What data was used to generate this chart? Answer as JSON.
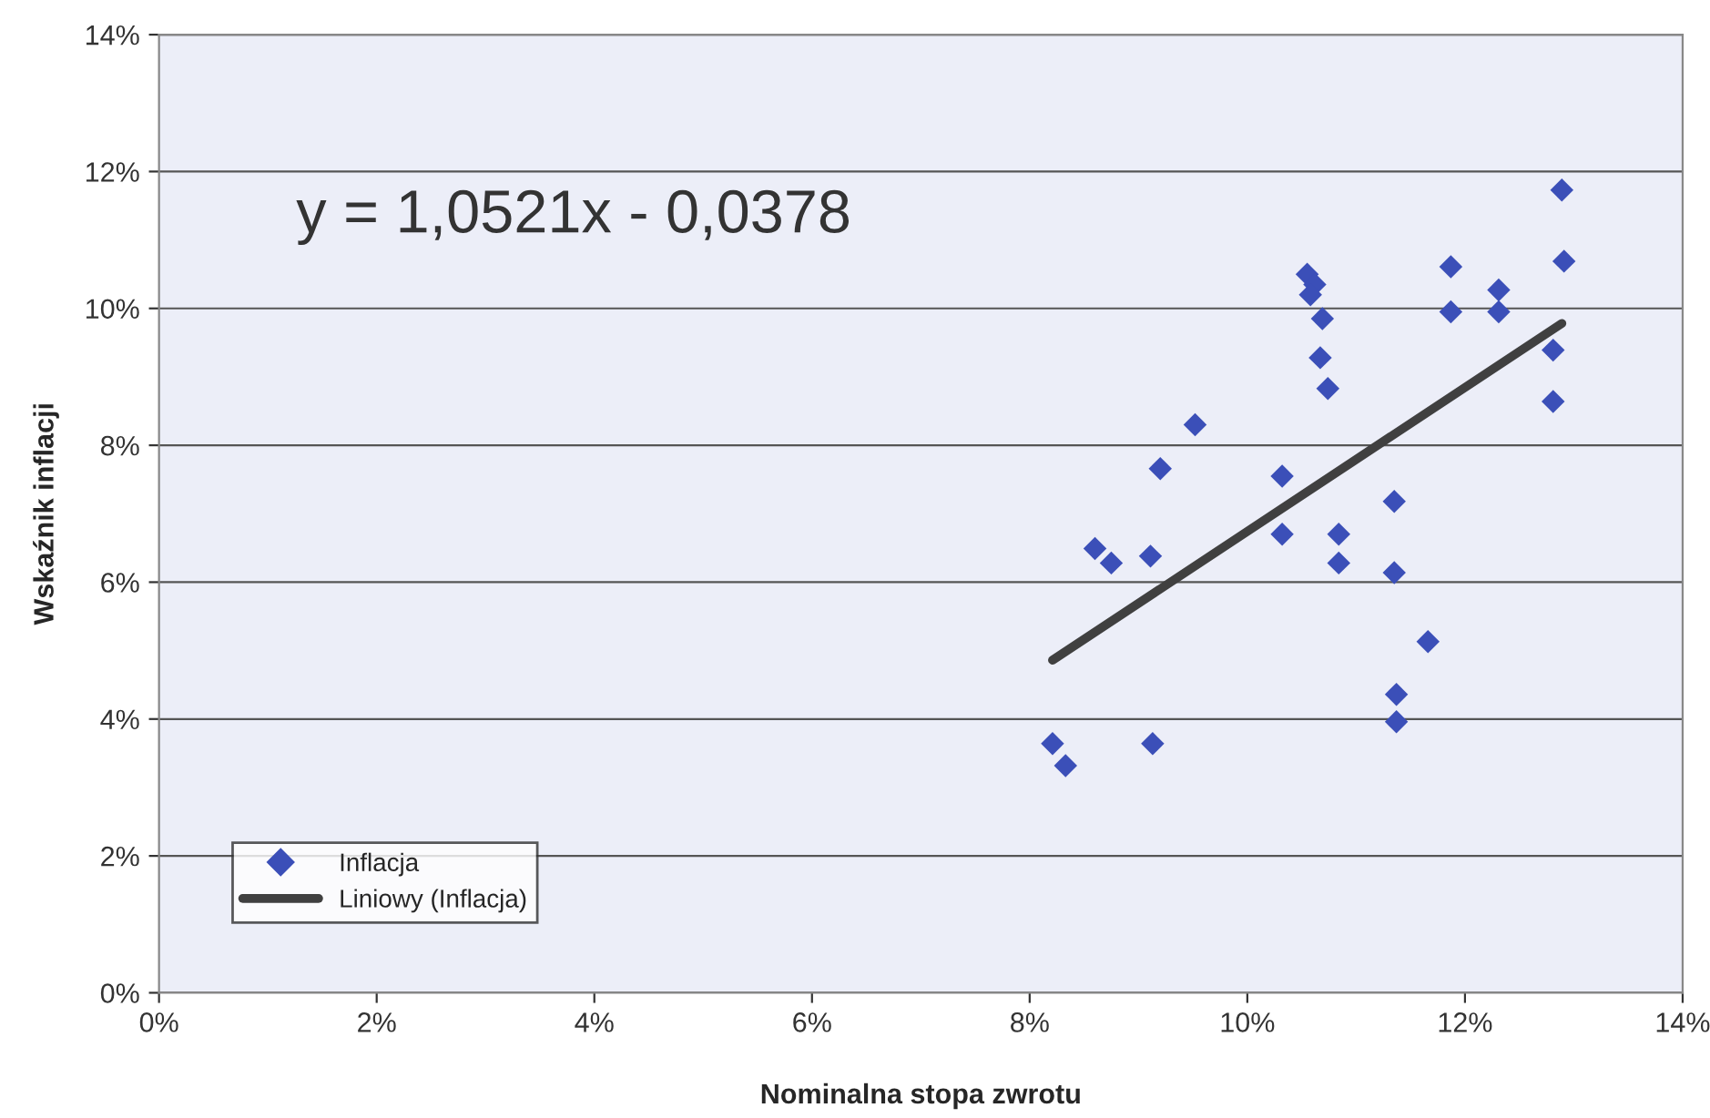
{
  "chart_data": {
    "type": "scatter",
    "xlabel": "Nominalna stopa zwrotu",
    "ylabel": "Wskaźnik inflacji",
    "annotations": [
      "y = 1,0521x - 0,0378"
    ],
    "series": [
      {
        "name": "Inflacja",
        "color": "#3b4fb8",
        "marker": "diamond",
        "x": [
          12.89,
          12.91,
          11.87,
          12.31,
          11.87,
          12.31,
          10.55,
          10.62,
          10.58,
          10.66,
          10.69,
          10.67,
          10.74,
          12.81,
          12.81,
          9.52,
          9.2,
          10.32,
          11.35,
          8.6,
          8.75,
          9.11,
          10.32,
          10.84,
          10.84,
          11.35,
          11.66,
          11.37,
          11.37,
          8.21,
          8.33,
          9.13
        ],
        "values": [
          11.73,
          10.69,
          10.61,
          10.27,
          9.95,
          9.95,
          10.5,
          10.35,
          10.2,
          null,
          9.85,
          9.28,
          8.83,
          9.39,
          8.64,
          8.3,
          7.66,
          7.55,
          7.18,
          6.49,
          6.28,
          6.38,
          6.7,
          6.7,
          6.28,
          6.14,
          5.13,
          4.36,
          3.96,
          3.64,
          3.32,
          3.64
        ]
      },
      {
        "name": "Liniowy (Inflacja)",
        "type": "line",
        "color": "#404040",
        "line_style": "solid",
        "x": [
          8.21,
          12.89
        ],
        "values": [
          4.86,
          9.78
        ]
      }
    ],
    "xlim": [
      0,
      14
    ],
    "xticks": [
      {
        "value": 0,
        "label": "0%"
      },
      {
        "value": 2,
        "label": "2%"
      },
      {
        "value": 4,
        "label": "4%"
      },
      {
        "value": 6,
        "label": "6%"
      },
      {
        "value": 8,
        "label": "8%"
      },
      {
        "value": 10,
        "label": "10%"
      },
      {
        "value": 12,
        "label": "12%"
      },
      {
        "value": 14,
        "label": "14%"
      }
    ],
    "ylim": [
      0,
      14
    ],
    "yticks": [
      {
        "value": 0,
        "label": "0%"
      },
      {
        "value": 2,
        "label": "2%"
      },
      {
        "value": 4,
        "label": "4%"
      },
      {
        "value": 6,
        "label": "6%"
      },
      {
        "value": 8,
        "label": "8%"
      },
      {
        "value": 10,
        "label": "10%"
      },
      {
        "value": 12,
        "label": "12%"
      },
      {
        "value": 14,
        "label": "14%"
      }
    ],
    "grid": "y",
    "legend": "bottom left"
  }
}
